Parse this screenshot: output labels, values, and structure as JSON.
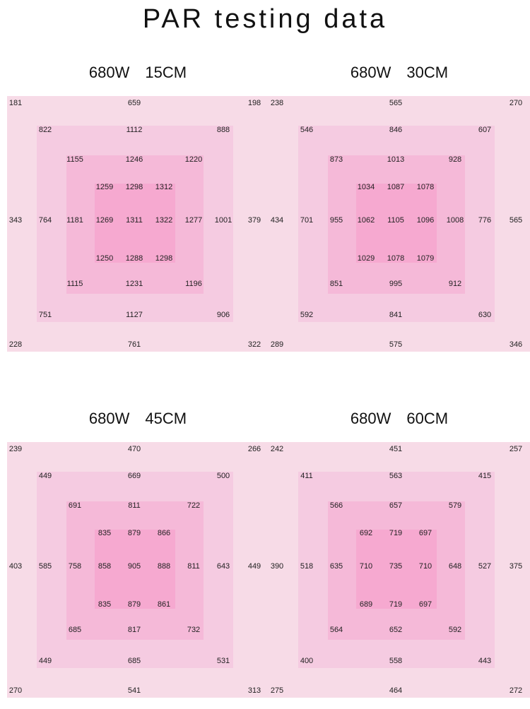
{
  "title": "PAR testing data",
  "chart_data": [
    {
      "type": "heatmap",
      "power": "680W",
      "distance": "15CM",
      "rows": [
        [
          "181",
          "",
          "",
          "",
          "659",
          "",
          "",
          "",
          "198"
        ],
        [
          "",
          "822",
          "",
          "",
          "1112",
          "",
          "",
          "888",
          ""
        ],
        [
          "",
          "",
          "1155",
          "",
          "1246",
          "",
          "1220",
          "",
          ""
        ],
        [
          "",
          "",
          "",
          "1259",
          "1298",
          "1312",
          "",
          "",
          ""
        ],
        [
          "343",
          "764",
          "1181",
          "1269",
          "1311",
          "1322",
          "1277",
          "1001",
          "379"
        ],
        [
          "",
          "",
          "",
          "1250",
          "1288",
          "1298",
          "",
          "",
          ""
        ],
        [
          "",
          "",
          "1115",
          "",
          "1231",
          "",
          "1196",
          "",
          ""
        ],
        [
          "",
          "751",
          "",
          "",
          "1127",
          "",
          "",
          "906",
          ""
        ],
        [
          "228",
          "",
          "",
          "",
          "761",
          "",
          "",
          "",
          "322"
        ]
      ]
    },
    {
      "type": "heatmap",
      "power": "680W",
      "distance": "30CM",
      "rows": [
        [
          "238",
          "",
          "",
          "",
          "565",
          "",
          "",
          "",
          "270"
        ],
        [
          "",
          "546",
          "",
          "",
          "846",
          "",
          "",
          "607",
          ""
        ],
        [
          "",
          "",
          "873",
          "",
          "1013",
          "",
          "928",
          "",
          ""
        ],
        [
          "",
          "",
          "",
          "1034",
          "1087",
          "1078",
          "",
          "",
          ""
        ],
        [
          "434",
          "701",
          "955",
          "1062",
          "1105",
          "1096",
          "1008",
          "776",
          "565"
        ],
        [
          "",
          "",
          "",
          "1029",
          "1078",
          "1079",
          "",
          "",
          ""
        ],
        [
          "",
          "",
          "851",
          "",
          "995",
          "",
          "912",
          "",
          ""
        ],
        [
          "",
          "592",
          "",
          "",
          "841",
          "",
          "",
          "630",
          ""
        ],
        [
          "289",
          "",
          "",
          "",
          "575",
          "",
          "",
          "",
          "346"
        ]
      ]
    },
    {
      "type": "heatmap",
      "power": "680W",
      "distance": "45CM",
      "rows": [
        [
          "239",
          "",
          "",
          "",
          "470",
          "",
          "",
          "",
          "266"
        ],
        [
          "",
          "449",
          "",
          "",
          "669",
          "",
          "",
          "500",
          ""
        ],
        [
          "",
          "",
          "691",
          "",
          "811",
          "",
          "722",
          "",
          ""
        ],
        [
          "",
          "",
          "",
          "835",
          "879",
          "866",
          "",
          "",
          ""
        ],
        [
          "403",
          "585",
          "758",
          "858",
          "905",
          "888",
          "811",
          "643",
          "449"
        ],
        [
          "",
          "",
          "",
          "835",
          "879",
          "861",
          "",
          "",
          ""
        ],
        [
          "",
          "",
          "685",
          "",
          "817",
          "",
          "732",
          "",
          ""
        ],
        [
          "",
          "449",
          "",
          "",
          "685",
          "",
          "",
          "531",
          ""
        ],
        [
          "270",
          "",
          "",
          "",
          "541",
          "",
          "",
          "",
          "313"
        ]
      ]
    },
    {
      "type": "heatmap",
      "power": "680W",
      "distance": "60CM",
      "rows": [
        [
          "242",
          "",
          "",
          "",
          "451",
          "",
          "",
          "",
          "257"
        ],
        [
          "",
          "411",
          "",
          "",
          "563",
          "",
          "",
          "415",
          ""
        ],
        [
          "",
          "",
          "566",
          "",
          "657",
          "",
          "579",
          "",
          ""
        ],
        [
          "",
          "",
          "",
          "692",
          "719",
          "697",
          "",
          "",
          ""
        ],
        [
          "390",
          "518",
          "635",
          "710",
          "735",
          "710",
          "648",
          "527",
          "375"
        ],
        [
          "",
          "",
          "",
          "689",
          "719",
          "697",
          "",
          "",
          ""
        ],
        [
          "",
          "",
          "564",
          "",
          "652",
          "",
          "592",
          "",
          ""
        ],
        [
          "",
          "400",
          "",
          "",
          "558",
          "",
          "",
          "443",
          ""
        ],
        [
          "275",
          "",
          "",
          "",
          "464",
          "",
          "",
          "",
          "272"
        ]
      ]
    }
  ]
}
